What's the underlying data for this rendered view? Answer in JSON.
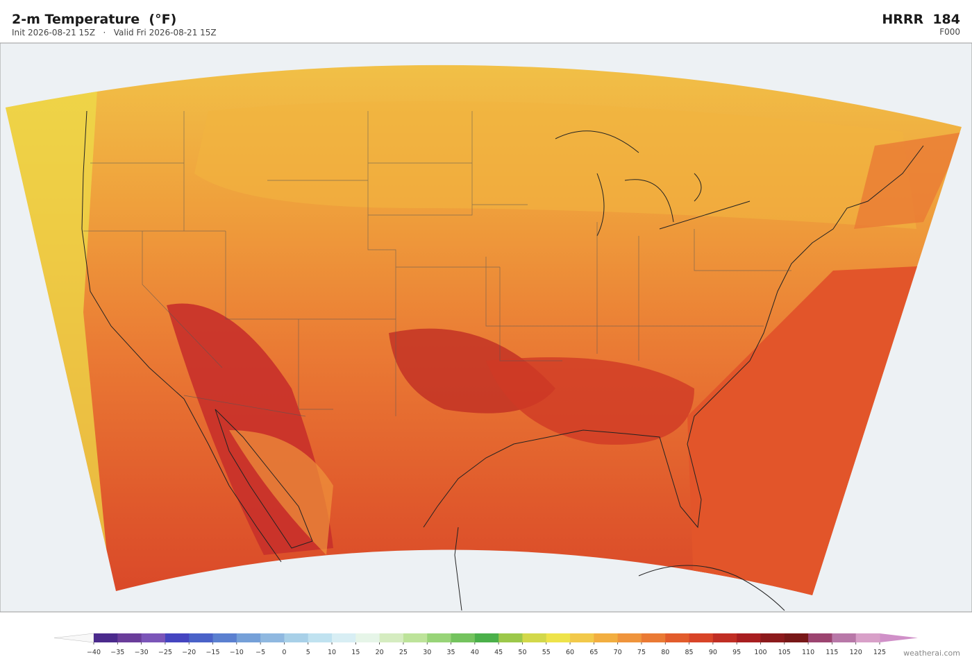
{
  "header": {
    "title": "2-m Temperature  (°F)",
    "subtitle": "Init 2026-08-21 15Z   ·   Valid Fri 2026-08-21 15Z",
    "model": "HRRR  184",
    "forecast_hour": "F000"
  },
  "colorbar": {
    "lim": [
      -40,
      125
    ],
    "ticks": [
      {
        "value": -40,
        "label": "−40"
      },
      {
        "value": -35,
        "label": "−35"
      },
      {
        "value": -30,
        "label": "−30"
      },
      {
        "value": -25,
        "label": "−25"
      },
      {
        "value": -20,
        "label": "−20"
      },
      {
        "value": -15,
        "label": "−15"
      },
      {
        "value": -10,
        "label": "−10"
      },
      {
        "value": -5,
        "label": "−5"
      },
      0,
      5,
      10,
      15,
      20,
      25,
      30,
      35,
      40,
      45,
      50,
      55,
      60,
      65,
      70,
      75,
      80,
      85,
      90,
      95,
      100,
      105,
      110,
      115,
      120,
      125
    ],
    "colors": [
      "#4b2a8c",
      "#6a3d9a",
      "#7b55b8",
      "#4545c0",
      "#4a62c8",
      "#5b80d0",
      "#75a0d8",
      "#8fb8e0",
      "#a8d0e8",
      "#c0e2f0",
      "#d8eef4",
      "#e6f5e8",
      "#d5ecc0",
      "#bde39a",
      "#98d478",
      "#74c35e",
      "#4bb04a",
      "#9cc84a",
      "#d2d84a",
      "#eee34a",
      "#f2c94a",
      "#f2ae40",
      "#ef943c",
      "#ea7a34",
      "#e25c2c",
      "#d84428",
      "#c02e24",
      "#a81e20",
      "#8c1a1c",
      "#781818",
      "#9c4470",
      "#b878a8",
      "#d8a0c8"
    ],
    "under_color": "#f8f8f8",
    "over_color": "#d090c8"
  },
  "credit": "weatherai.com"
}
